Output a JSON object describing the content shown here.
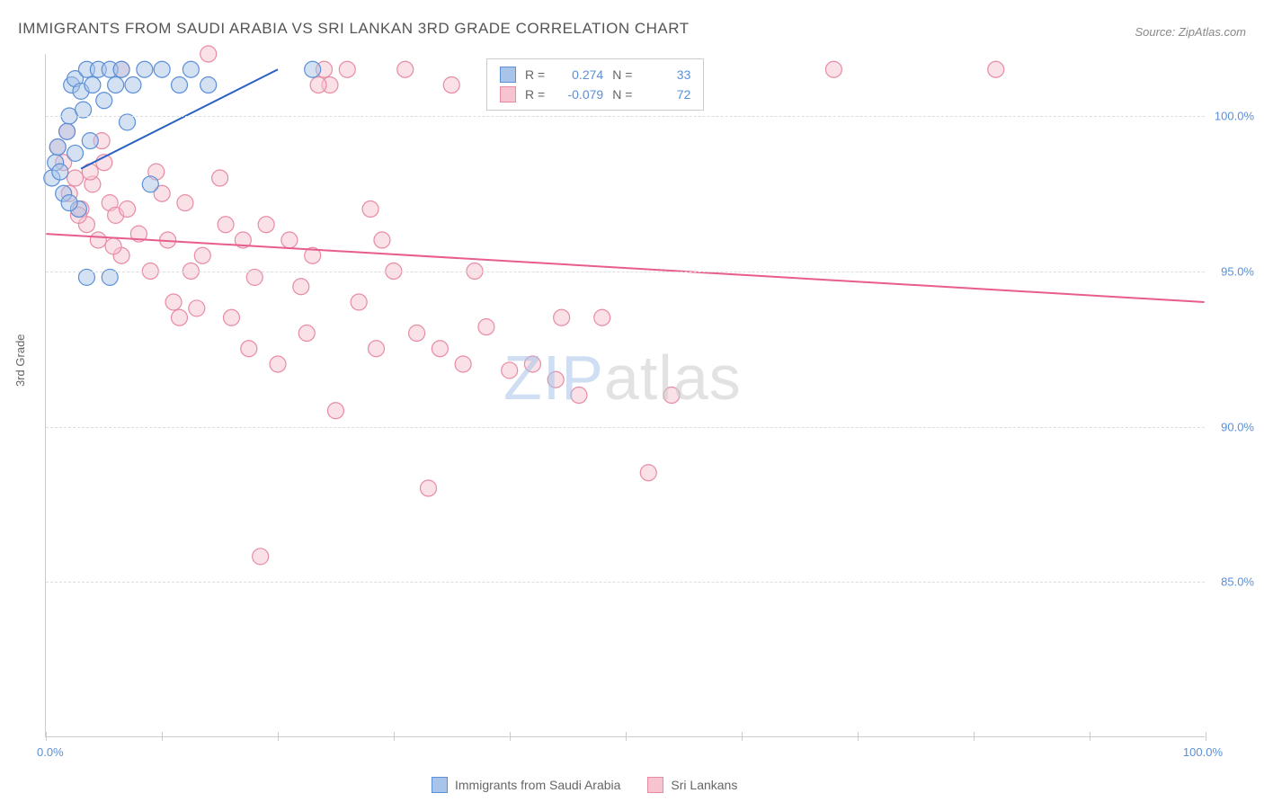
{
  "title": "IMMIGRANTS FROM SAUDI ARABIA VS SRI LANKAN 3RD GRADE CORRELATION CHART",
  "source": "Source: ZipAtlas.com",
  "ylabel": "3rd Grade",
  "watermark_part1": "ZIP",
  "watermark_part2": "atlas",
  "chart": {
    "type": "scatter",
    "xlim": [
      0,
      100
    ],
    "ylim": [
      80,
      102
    ],
    "x_tick_positions": [
      0,
      10,
      20,
      30,
      40,
      50,
      60,
      70,
      80,
      90,
      100
    ],
    "x_tick_labels": {
      "start": "0.0%",
      "end": "100.0%"
    },
    "y_ticks": [
      {
        "value": 85,
        "label": "85.0%"
      },
      {
        "value": 90,
        "label": "90.0%"
      },
      {
        "value": 95,
        "label": "95.0%"
      },
      {
        "value": 100,
        "label": "100.0%"
      }
    ],
    "marker_radius": 9,
    "marker_opacity": 0.5,
    "line_width": 2,
    "background_color": "#ffffff",
    "grid_color": "#dddddd"
  },
  "series": {
    "saudi": {
      "label": "Immigrants from Saudi Arabia",
      "fill": "#a8c4e8",
      "stroke": "#5b8fd6",
      "line_color": "#2962c4",
      "R_label": "R =",
      "R_value": "0.274",
      "N_label": "N =",
      "N_value": "33",
      "regression": {
        "x1": 3,
        "y1": 98.3,
        "x2": 20,
        "y2": 101.5
      },
      "points": [
        [
          0.5,
          98.0
        ],
        [
          0.8,
          98.5
        ],
        [
          1.0,
          99.0
        ],
        [
          1.2,
          98.2
        ],
        [
          1.5,
          97.5
        ],
        [
          1.8,
          99.5
        ],
        [
          2.0,
          100.0
        ],
        [
          2.2,
          101.0
        ],
        [
          2.5,
          101.2
        ],
        [
          2.8,
          97.0
        ],
        [
          3.0,
          100.8
        ],
        [
          3.5,
          101.5
        ],
        [
          3.8,
          99.2
        ],
        [
          4.0,
          101.0
        ],
        [
          4.5,
          101.5
        ],
        [
          5.0,
          100.5
        ],
        [
          5.5,
          101.5
        ],
        [
          6.0,
          101.0
        ],
        [
          6.5,
          101.5
        ],
        [
          7.0,
          99.8
        ],
        [
          7.5,
          101.0
        ],
        [
          8.5,
          101.5
        ],
        [
          9.0,
          97.8
        ],
        [
          10.0,
          101.5
        ],
        [
          11.5,
          101.0
        ],
        [
          12.5,
          101.5
        ],
        [
          14.0,
          101.0
        ],
        [
          3.5,
          94.8
        ],
        [
          5.5,
          94.8
        ],
        [
          2.0,
          97.2
        ],
        [
          2.5,
          98.8
        ],
        [
          3.2,
          100.2
        ],
        [
          23.0,
          101.5
        ]
      ]
    },
    "sri_lankan": {
      "label": "Sri Lankans",
      "fill": "#f5c4cf",
      "stroke": "#e88ba3",
      "line_color": "#e85d8e",
      "R_label": "R =",
      "R_value": "-0.079",
      "N_label": "N =",
      "N_value": "72",
      "regression": {
        "x1": 0,
        "y1": 96.2,
        "x2": 100,
        "y2": 94.0
      },
      "points": [
        [
          1.0,
          99.0
        ],
        [
          1.5,
          98.5
        ],
        [
          2.0,
          97.5
        ],
        [
          2.5,
          98.0
        ],
        [
          3.0,
          97.0
        ],
        [
          3.5,
          96.5
        ],
        [
          4.0,
          97.8
        ],
        [
          4.5,
          96.0
        ],
        [
          5.0,
          98.5
        ],
        [
          5.5,
          97.2
        ],
        [
          6.0,
          96.8
        ],
        [
          6.5,
          95.5
        ],
        [
          7.0,
          97.0
        ],
        [
          8.0,
          96.2
        ],
        [
          9.0,
          95.0
        ],
        [
          10.0,
          97.5
        ],
        [
          10.5,
          96.0
        ],
        [
          11.0,
          94.0
        ],
        [
          11.5,
          93.5
        ],
        [
          12.0,
          97.2
        ],
        [
          13.0,
          93.8
        ],
        [
          13.5,
          95.5
        ],
        [
          14.0,
          102.0
        ],
        [
          15.0,
          98.0
        ],
        [
          15.5,
          96.5
        ],
        [
          16.0,
          93.5
        ],
        [
          17.0,
          96.0
        ],
        [
          17.5,
          92.5
        ],
        [
          18.0,
          94.8
        ],
        [
          18.5,
          85.8
        ],
        [
          19.0,
          96.5
        ],
        [
          20.0,
          92.0
        ],
        [
          21.0,
          96.0
        ],
        [
          22.0,
          94.5
        ],
        [
          22.5,
          93.0
        ],
        [
          23.0,
          95.5
        ],
        [
          24.0,
          101.5
        ],
        [
          24.5,
          101.0
        ],
        [
          25.0,
          90.5
        ],
        [
          26.0,
          101.5
        ],
        [
          27.0,
          94.0
        ],
        [
          28.0,
          97.0
        ],
        [
          28.5,
          92.5
        ],
        [
          29.0,
          96.0
        ],
        [
          30.0,
          95.0
        ],
        [
          31.0,
          101.5
        ],
        [
          32.0,
          93.0
        ],
        [
          33.0,
          88.0
        ],
        [
          34.0,
          92.5
        ],
        [
          35.0,
          101.0
        ],
        [
          36.0,
          92.0
        ],
        [
          37.0,
          95.0
        ],
        [
          38.0,
          93.2
        ],
        [
          40.0,
          91.8
        ],
        [
          42.0,
          92.0
        ],
        [
          44.0,
          91.5
        ],
        [
          44.5,
          93.5
        ],
        [
          46.0,
          91.0
        ],
        [
          48.0,
          93.5
        ],
        [
          52.0,
          88.5
        ],
        [
          54.0,
          91.0
        ],
        [
          68.0,
          101.5
        ],
        [
          82.0,
          101.5
        ],
        [
          1.8,
          99.5
        ],
        [
          2.8,
          96.8
        ],
        [
          3.8,
          98.2
        ],
        [
          4.8,
          99.2
        ],
        [
          5.8,
          95.8
        ],
        [
          9.5,
          98.2
        ],
        [
          12.5,
          95.0
        ],
        [
          23.5,
          101.0
        ],
        [
          6.5,
          101.5
        ]
      ]
    }
  }
}
